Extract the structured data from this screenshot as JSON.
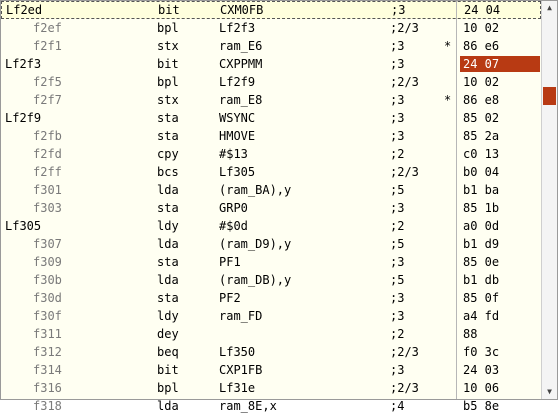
{
  "rows": [
    {
      "addr": "Lf2ed",
      "label": true,
      "mnem": "bit",
      "oper": "CXM0FB",
      "cyc": ";3",
      "bp": "",
      "bytes": "24 04",
      "hl": false
    },
    {
      "addr": "f2ef",
      "label": false,
      "mnem": "bpl",
      "oper": "Lf2f3",
      "cyc": ";2/3",
      "bp": "",
      "bytes": "10 02",
      "hl": false
    },
    {
      "addr": "f2f1",
      "label": false,
      "mnem": "stx",
      "oper": "ram_E6",
      "cyc": ";3",
      "bp": "*",
      "bytes": "86 e6",
      "hl": false
    },
    {
      "addr": "Lf2f3",
      "label": true,
      "mnem": "bit",
      "oper": "CXPPMM",
      "cyc": ";3",
      "bp": "",
      "bytes": "24 07",
      "hl": true
    },
    {
      "addr": "f2f5",
      "label": false,
      "mnem": "bpl",
      "oper": "Lf2f9",
      "cyc": ";2/3",
      "bp": "",
      "bytes": "10 02",
      "hl": false
    },
    {
      "addr": "f2f7",
      "label": false,
      "mnem": "stx",
      "oper": "ram_E8",
      "cyc": ";3",
      "bp": "*",
      "bytes": "86 e8",
      "hl": false
    },
    {
      "addr": "Lf2f9",
      "label": true,
      "mnem": "sta",
      "oper": "WSYNC",
      "cyc": ";3",
      "bp": "",
      "bytes": "85 02",
      "hl": false
    },
    {
      "addr": "f2fb",
      "label": false,
      "mnem": "sta",
      "oper": "HMOVE",
      "cyc": ";3",
      "bp": "",
      "bytes": "85 2a",
      "hl": false
    },
    {
      "addr": "f2fd",
      "label": false,
      "mnem": "cpy",
      "oper": "#$13",
      "cyc": ";2",
      "bp": "",
      "bytes": "c0 13",
      "hl": false
    },
    {
      "addr": "f2ff",
      "label": false,
      "mnem": "bcs",
      "oper": "Lf305",
      "cyc": ";2/3",
      "bp": "",
      "bytes": "b0 04",
      "hl": false
    },
    {
      "addr": "f301",
      "label": false,
      "mnem": "lda",
      "oper": "(ram_BA),y",
      "cyc": ";5",
      "bp": "",
      "bytes": "b1 ba",
      "hl": false
    },
    {
      "addr": "f303",
      "label": false,
      "mnem": "sta",
      "oper": "GRP0",
      "cyc": ";3",
      "bp": "",
      "bytes": "85 1b",
      "hl": false
    },
    {
      "addr": "Lf305",
      "label": true,
      "mnem": "ldy",
      "oper": "#$0d",
      "cyc": ";2",
      "bp": "",
      "bytes": "a0 0d",
      "hl": false
    },
    {
      "addr": "f307",
      "label": false,
      "mnem": "lda",
      "oper": "(ram_D9),y",
      "cyc": ";5",
      "bp": "",
      "bytes": "b1 d9",
      "hl": false
    },
    {
      "addr": "f309",
      "label": false,
      "mnem": "sta",
      "oper": "PF1",
      "cyc": ";3",
      "bp": "",
      "bytes": "85 0e",
      "hl": false
    },
    {
      "addr": "f30b",
      "label": false,
      "mnem": "lda",
      "oper": "(ram_DB),y",
      "cyc": ";5",
      "bp": "",
      "bytes": "b1 db",
      "hl": false
    },
    {
      "addr": "f30d",
      "label": false,
      "mnem": "sta",
      "oper": "PF2",
      "cyc": ";3",
      "bp": "",
      "bytes": "85 0f",
      "hl": false
    },
    {
      "addr": "f30f",
      "label": false,
      "mnem": "ldy",
      "oper": "ram_FD",
      "cyc": ";3",
      "bp": "",
      "bytes": "a4 fd",
      "hl": false
    },
    {
      "addr": "f311",
      "label": false,
      "mnem": "dey",
      "oper": "",
      "cyc": ";2",
      "bp": "",
      "bytes": "88",
      "hl": false
    },
    {
      "addr": "f312",
      "label": false,
      "mnem": "beq",
      "oper": "Lf350",
      "cyc": ";2/3",
      "bp": "",
      "bytes": "f0 3c",
      "hl": false
    },
    {
      "addr": "f314",
      "label": false,
      "mnem": "bit",
      "oper": "CXP1FB",
      "cyc": ";3",
      "bp": "",
      "bytes": "24 03",
      "hl": false
    },
    {
      "addr": "f316",
      "label": false,
      "mnem": "bpl",
      "oper": "Lf31e",
      "cyc": ";2/3",
      "bp": "",
      "bytes": "10 06",
      "hl": false
    },
    {
      "addr": "f318",
      "label": false,
      "mnem": "lda",
      "oper": "ram_8E,x",
      "cyc": ";4",
      "bp": "",
      "bytes": "b5 8e",
      "hl": false
    }
  ],
  "scrollbar": {
    "up_icon": "chevron-up-icon",
    "down_icon": "chevron-down-icon",
    "thumb_color": "#b83a13"
  },
  "colors": {
    "accent": "#b83a13",
    "label": "#000000",
    "address": "#7a7a7a"
  }
}
